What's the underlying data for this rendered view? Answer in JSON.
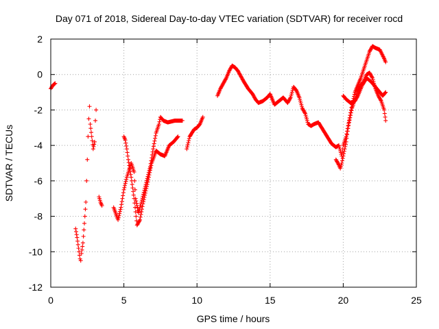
{
  "chart_data": {
    "type": "scatter",
    "title": "Day 071 of 2018, Sidereal Day-to-day VTEC variation (SDTVAR) for receiver rocd",
    "xlabel": "GPS time / hours",
    "ylabel": "SDTVAR / TECUs",
    "xlim": [
      0,
      25
    ],
    "ylim": [
      -12,
      2
    ],
    "xticks": [
      0,
      5,
      10,
      15,
      20,
      25
    ],
    "xtick_labels": [
      "0",
      "5",
      "10",
      "15",
      "20",
      "25"
    ],
    "yticks": [
      2,
      0,
      -2,
      -4,
      -6,
      -8,
      -10,
      -12
    ],
    "ytick_labels": [
      "2",
      "0",
      "-2",
      "-4",
      "-6",
      "-8",
      "-10",
      "-12"
    ],
    "grid": true,
    "marker": "+",
    "color": "#ff0000",
    "series": [
      {
        "name": "SDTVAR",
        "segments": [
          {
            "x": [
              0.0,
              0.15,
              0.3
            ],
            "y": [
              -0.8,
              -0.6,
              -0.5
            ]
          },
          {
            "x": [
              1.7,
              1.8,
              1.9,
              2.0,
              2.05,
              2.1,
              2.2,
              2.3,
              2.4
            ],
            "y": [
              -8.7,
              -9.2,
              -9.8,
              -10.4,
              -10.5,
              -10.1,
              -9.5,
              -8.4,
              -7.2
            ]
          },
          {
            "x": [
              2.45,
              2.5,
              2.55,
              2.6,
              2.65,
              2.7,
              2.8,
              2.9,
              3.0,
              3.05,
              3.1
            ],
            "y": [
              -6.0,
              -4.8,
              -3.5,
              -2.5,
              -1.8,
              -2.8,
              -3.5,
              -4.2,
              -3.8,
              -2.6,
              -2.0
            ]
          },
          {
            "x": [
              3.3,
              3.4,
              3.5
            ],
            "y": [
              -6.9,
              -7.2,
              -7.4
            ]
          },
          {
            "x": [
              4.3,
              4.6,
              4.8,
              5.0,
              5.2,
              5.5,
              5.7,
              5.8,
              6.0,
              6.2,
              6.5,
              6.8,
              7.0,
              7.2,
              7.4,
              7.5,
              7.7,
              8.0,
              8.5,
              9.0
            ],
            "y": [
              -7.5,
              -8.2,
              -7.5,
              -6.5,
              -5.8,
              -5.0,
              -5.5,
              -7.0,
              -7.8,
              -7.2,
              -6.2,
              -5.2,
              -4.2,
              -3.3,
              -2.8,
              -2.4,
              -2.6,
              -2.7,
              -2.6,
              -2.6
            ]
          },
          {
            "x": [
              5.0,
              5.1,
              5.2,
              5.3,
              5.5,
              5.7,
              5.9,
              6.1,
              6.3,
              6.6,
              6.9,
              7.2,
              7.5,
              7.8,
              8.1,
              8.4,
              8.7
            ],
            "y": [
              -3.5,
              -3.7,
              -4.2,
              -4.8,
              -5.8,
              -7.0,
              -8.5,
              -8.2,
              -7.3,
              -6.2,
              -5.0,
              -4.3,
              -4.5,
              -4.6,
              -4.0,
              -3.8,
              -3.5
            ]
          },
          {
            "x": [
              9.3,
              9.5,
              9.8,
              10.0,
              10.2,
              10.4
            ],
            "y": [
              -4.2,
              -3.5,
              -3.1,
              -3.0,
              -2.8,
              -2.4
            ]
          },
          {
            "x": [
              11.4,
              11.6,
              11.8,
              12.0,
              12.2,
              12.4,
              12.6,
              12.8,
              13.0,
              13.2,
              13.5,
              13.8,
              14.0,
              14.2,
              14.5,
              14.8,
              15.0,
              15.3,
              15.6,
              15.9,
              16.2,
              16.4,
              16.6,
              16.8,
              17.0,
              17.2,
              17.4,
              17.6,
              17.8,
              18.0,
              18.3,
              18.6,
              18.9,
              19.2,
              19.5,
              19.7,
              19.8,
              19.9,
              20.0,
              20.2,
              20.4,
              20.6,
              20.8,
              21.0,
              21.2,
              21.4,
              21.6,
              21.8,
              22.0,
              22.2,
              22.5,
              22.8,
              22.9
            ],
            "y": [
              -1.2,
              -0.8,
              -0.5,
              -0.2,
              0.2,
              0.5,
              0.4,
              0.2,
              -0.1,
              -0.4,
              -0.8,
              -1.1,
              -1.4,
              -1.6,
              -1.5,
              -1.3,
              -1.1,
              -1.7,
              -1.5,
              -1.3,
              -1.6,
              -1.3,
              -0.7,
              -0.9,
              -1.3,
              -1.9,
              -2.2,
              -2.8,
              -2.9,
              -2.8,
              -2.7,
              -3.1,
              -3.5,
              -3.9,
              -4.1,
              -4.0,
              -4.3,
              -4.6,
              -4.0,
              -3.5,
              -2.6,
              -1.7,
              -1.0,
              -0.6,
              -0.2,
              0.3,
              0.8,
              1.3,
              1.6,
              1.5,
              1.4,
              0.9,
              0.7
            ]
          },
          {
            "x": [
              19.5,
              19.7,
              19.8,
              19.9,
              20.0,
              20.2,
              20.3,
              20.4,
              20.5,
              20.6,
              20.8,
              21.0,
              21.2,
              21.4,
              21.6,
              21.8,
              22.0,
              22.2,
              22.4,
              22.6,
              22.8,
              22.9
            ],
            "y": [
              -4.8,
              -5.1,
              -5.3,
              -5.0,
              -4.6,
              -3.8,
              -3.2,
              -2.7,
              -2.3,
              -1.9,
              -1.4,
              -0.9,
              -0.6,
              -0.4,
              0.0,
              0.1,
              -0.2,
              -0.8,
              -1.2,
              -1.5,
              -2.0,
              -2.6
            ]
          },
          {
            "x": [
              20.0,
              20.2,
              20.5,
              20.8,
              21.0,
              21.3,
              21.6,
              21.9,
              22.1,
              22.4,
              22.7,
              22.9
            ],
            "y": [
              -1.2,
              -1.4,
              -1.6,
              -1.5,
              -1.2,
              -0.6,
              -0.2,
              -0.4,
              -0.6,
              -0.9,
              -1.2,
              -1.0
            ]
          }
        ]
      }
    ]
  }
}
